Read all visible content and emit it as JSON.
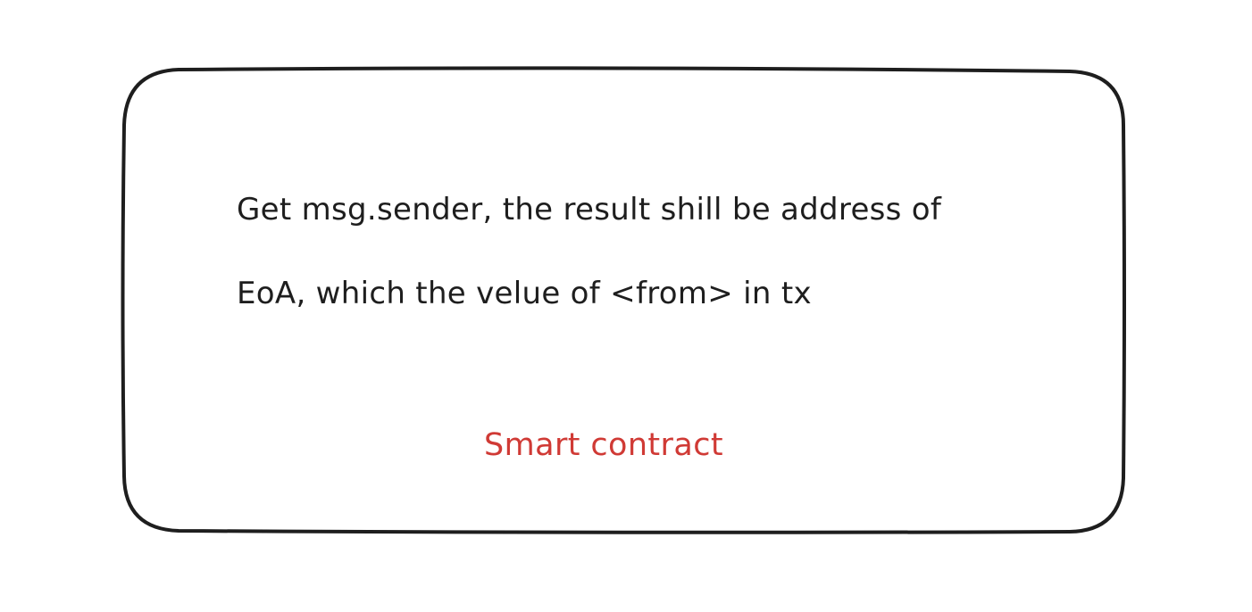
{
  "diagram": {
    "node": {
      "note_lines": [
        "Get msg.sender, the result shill be address of",
        "EoA, which the velue of <from> in tx"
      ],
      "label": "Smart contract"
    },
    "colors": {
      "stroke": "#1e1e1e",
      "label": "#d03a35",
      "background": "#ffffff"
    }
  }
}
